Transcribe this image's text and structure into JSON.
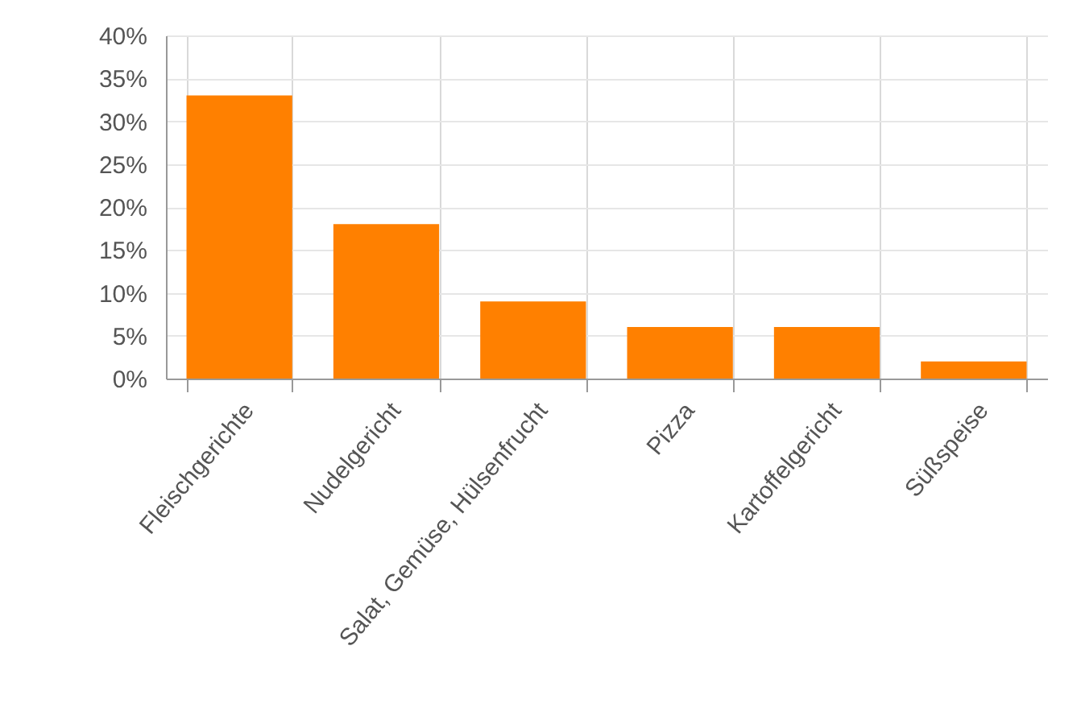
{
  "chart_data": {
    "type": "bar",
    "categories": [
      "Fleischgerichte",
      "Nudelgericht",
      "Salat, Gemüse, Hülsenfrucht",
      "Pizza",
      "Kartoffelgericht",
      "Süßspeise"
    ],
    "values": [
      33,
      18,
      9,
      6,
      6,
      2
    ],
    "color": "#ff8000",
    "ylim": [
      0,
      40
    ],
    "yticks": [
      {
        "value": 0,
        "label": "0%"
      },
      {
        "value": 5,
        "label": "5%"
      },
      {
        "value": 10,
        "label": "10%"
      },
      {
        "value": 15,
        "label": "15%"
      },
      {
        "value": 20,
        "label": "20%"
      },
      {
        "value": 25,
        "label": "25%"
      },
      {
        "value": 30,
        "label": "30%"
      },
      {
        "value": 35,
        "label": "35%"
      },
      {
        "value": 40,
        "label": "40%"
      }
    ],
    "grid": true
  }
}
